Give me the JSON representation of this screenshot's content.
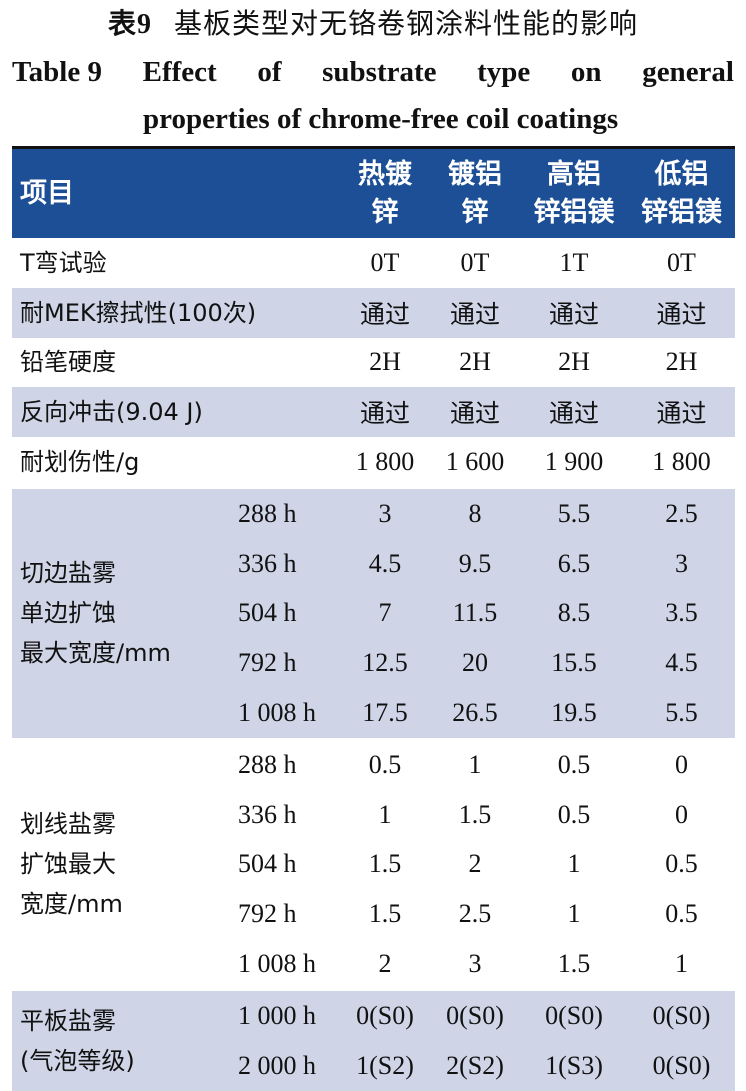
{
  "title_cn": {
    "num": "表9",
    "text": "基板类型对无铬卷钢涂料性能的影响"
  },
  "title_en": {
    "line1": [
      "Table 9",
      "Effect",
      "of",
      "substrate",
      "type",
      "on",
      "general"
    ],
    "line2": "properties of chrome-free coil coatings"
  },
  "header": {
    "item": "项目",
    "columns": [
      "热镀\n锌",
      "镀铝\n锌",
      "高铝\n锌铝镁",
      "低铝\n锌铝镁"
    ]
  },
  "colors": {
    "header_bg": "#1c4f95",
    "shade": "#cfd5e7"
  },
  "rows": [
    {
      "label": "T弯试验",
      "values": [
        "0T",
        "0T",
        "1T",
        "0T"
      ],
      "shaded": false
    },
    {
      "label": "耐MEK擦拭性(100次)",
      "values": [
        "通过",
        "通过",
        "通过",
        "通过"
      ],
      "shaded": true
    },
    {
      "label": "铅笔硬度",
      "values": [
        "2H",
        "2H",
        "2H",
        "2H"
      ],
      "shaded": false
    },
    {
      "label": "反向冲击(9.04 J)",
      "values": [
        "通过",
        "通过",
        "通过",
        "通过"
      ],
      "shaded": true
    },
    {
      "label": "耐划伤性/g",
      "values": [
        "1 800",
        "1 600",
        "1 900",
        "1 800"
      ],
      "shaded": false
    }
  ],
  "groups": [
    {
      "label": "切边盐雾\n单边扩蚀\n最大宽度/mm",
      "shaded": true,
      "rows": [
        {
          "hours": "288 h",
          "values": [
            "3",
            "8",
            "5.5",
            "2.5"
          ]
        },
        {
          "hours": "336 h",
          "values": [
            "4.5",
            "9.5",
            "6.5",
            "3"
          ]
        },
        {
          "hours": "504 h",
          "values": [
            "7",
            "11.5",
            "8.5",
            "3.5"
          ]
        },
        {
          "hours": "792 h",
          "values": [
            "12.5",
            "20",
            "15.5",
            "4.5"
          ]
        },
        {
          "hours": "1 008 h",
          "values": [
            "17.5",
            "26.5",
            "19.5",
            "5.5"
          ]
        }
      ]
    },
    {
      "label": "划线盐雾\n扩蚀最大\n宽度/mm",
      "shaded": false,
      "rows": [
        {
          "hours": "288 h",
          "values": [
            "0.5",
            "1",
            "0.5",
            "0"
          ]
        },
        {
          "hours": "336 h",
          "values": [
            "1",
            "1.5",
            "0.5",
            "0"
          ]
        },
        {
          "hours": "504 h",
          "values": [
            "1.5",
            "2",
            "1",
            "0.5"
          ]
        },
        {
          "hours": "792 h",
          "values": [
            "1.5",
            "2.5",
            "1",
            "0.5"
          ]
        },
        {
          "hours": "1 008 h",
          "values": [
            "2",
            "3",
            "1.5",
            "1"
          ]
        }
      ]
    },
    {
      "label": "平板盐雾\n(气泡等级)",
      "shaded": true,
      "rows": [
        {
          "hours": "1 000 h",
          "values": [
            "0(S0)",
            "0(S0)",
            "0(S0)",
            "0(S0)"
          ]
        },
        {
          "hours": "2 000 h",
          "values": [
            "1(S2)",
            "2(S2)",
            "1(S3)",
            "0(S0)"
          ]
        }
      ]
    }
  ]
}
